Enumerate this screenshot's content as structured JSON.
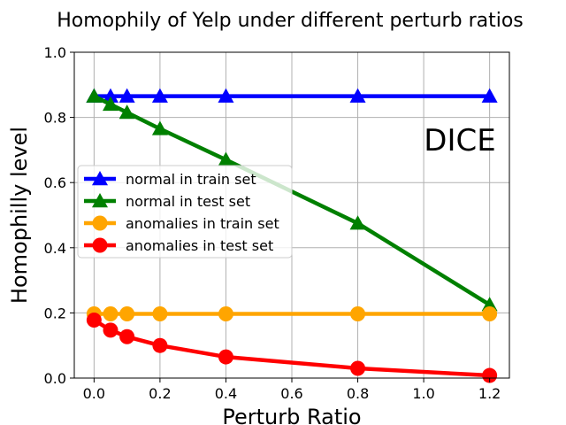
{
  "chart_data": {
    "type": "line",
    "title": "Homophily of Yelp under different perturb ratios",
    "xlabel": "Perturb Ratio",
    "ylabel": "Homophilly level",
    "annotation": "DICE",
    "x": [
      0.0,
      0.05,
      0.1,
      0.2,
      0.4,
      0.8,
      1.2
    ],
    "xlim": [
      -0.06,
      1.26
    ],
    "ylim": [
      0.0,
      1.0
    ],
    "xticks": [
      0.0,
      0.2,
      0.4,
      0.6,
      0.8,
      1.0,
      1.2
    ],
    "xtick_labels": [
      "0.0",
      "0.2",
      "0.4",
      "0.6",
      "0.8",
      "1.0",
      "1.2"
    ],
    "yticks": [
      0.0,
      0.2,
      0.4,
      0.6,
      0.8,
      1.0
    ],
    "ytick_labels": [
      "0.0",
      "0.2",
      "0.4",
      "0.6",
      "0.8",
      "1.0"
    ],
    "grid": true,
    "legend_position": "center-left",
    "series": [
      {
        "name": "normal in train set",
        "color": "#0000ff",
        "marker": "triangle",
        "values": [
          0.865,
          0.865,
          0.865,
          0.865,
          0.865,
          0.865,
          0.865
        ]
      },
      {
        "name": "normal in test set",
        "color": "#008000",
        "marker": "triangle",
        "values": [
          0.865,
          0.84,
          0.815,
          0.765,
          0.67,
          0.475,
          0.225
        ]
      },
      {
        "name": "anomalies in train set",
        "color": "#ffa500",
        "marker": "circle",
        "values": [
          0.197,
          0.197,
          0.197,
          0.197,
          0.197,
          0.197,
          0.197
        ]
      },
      {
        "name": "anomalies in test set",
        "color": "#ff0000",
        "marker": "circle",
        "values": [
          0.178,
          0.147,
          0.127,
          0.1,
          0.065,
          0.03,
          0.008
        ]
      }
    ]
  }
}
